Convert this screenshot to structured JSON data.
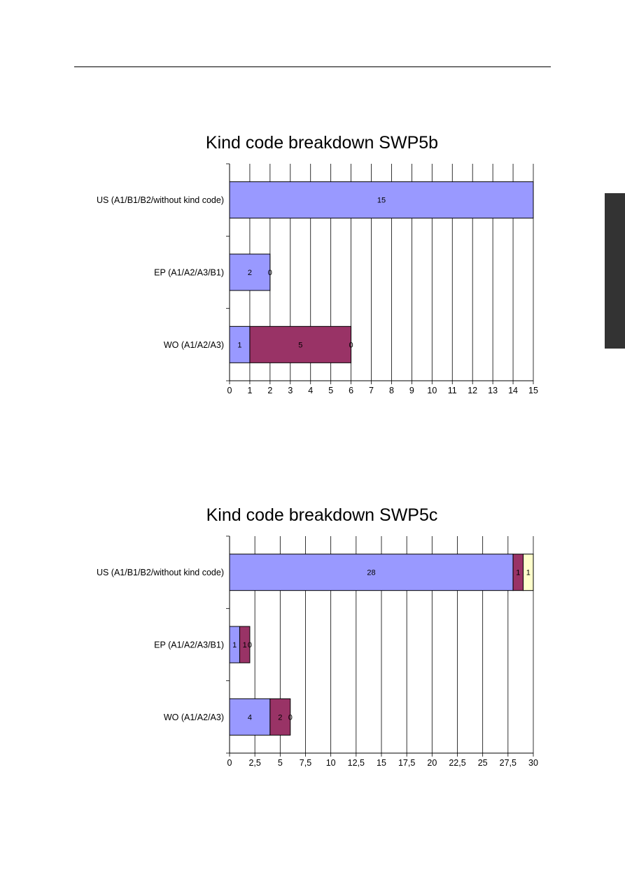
{
  "page": {
    "side_tab_color": "#333333"
  },
  "chart_data": [
    {
      "type": "bar",
      "orientation": "horizontal",
      "stacked": true,
      "title": "Kind code breakdown SWP5b",
      "categories": [
        "US (A1/B1/B2/without kind code)",
        "EP (A1/A2/A3/B1)",
        "WO (A1/A2/A3)"
      ],
      "series": [
        {
          "color": "#9999ff",
          "values": [
            15,
            2,
            1
          ],
          "labels": [
            "15",
            "2",
            "1"
          ]
        },
        {
          "color": "#993366",
          "values": [
            0,
            0,
            5
          ],
          "labels": [
            "",
            "0",
            "5"
          ]
        },
        {
          "color": "#ffffcc",
          "values": [
            0,
            0,
            0
          ],
          "labels": [
            "",
            "",
            "0"
          ]
        }
      ],
      "xlim": [
        0,
        15
      ],
      "xticks": [
        0,
        1,
        2,
        3,
        4,
        5,
        6,
        7,
        8,
        9,
        10,
        11,
        12,
        13,
        14,
        15
      ],
      "xtick_labels": [
        "0",
        "1",
        "2",
        "3",
        "4",
        "5",
        "6",
        "7",
        "8",
        "9",
        "10",
        "11",
        "12",
        "13",
        "14",
        "15"
      ],
      "grid": true,
      "legend": "none"
    },
    {
      "type": "bar",
      "orientation": "horizontal",
      "stacked": true,
      "title": "Kind code breakdown SWP5c",
      "categories": [
        "US (A1/B1/B2/without kind code)",
        "EP (A1/A2/A3/B1)",
        "WO (A1/A2/A3)"
      ],
      "series": [
        {
          "color": "#9999ff",
          "values": [
            28,
            1,
            4
          ],
          "labels": [
            "28",
            "1",
            "4"
          ]
        },
        {
          "color": "#993366",
          "values": [
            1,
            1,
            2
          ],
          "labels": [
            "1",
            "1",
            "2"
          ]
        },
        {
          "color": "#ffffcc",
          "values": [
            1,
            0,
            0
          ],
          "labels": [
            "1",
            "0",
            "0"
          ]
        }
      ],
      "xlim": [
        0,
        30
      ],
      "xticks": [
        0,
        2.5,
        5,
        7.5,
        10,
        12.5,
        15,
        17.5,
        20,
        22.5,
        25,
        27.5,
        30
      ],
      "xtick_labels": [
        "0",
        "2,5",
        "5",
        "7,5",
        "10",
        "12,5",
        "15",
        "17,5",
        "20",
        "22,5",
        "25",
        "27,5",
        "30"
      ],
      "grid": true,
      "legend": "none"
    }
  ]
}
